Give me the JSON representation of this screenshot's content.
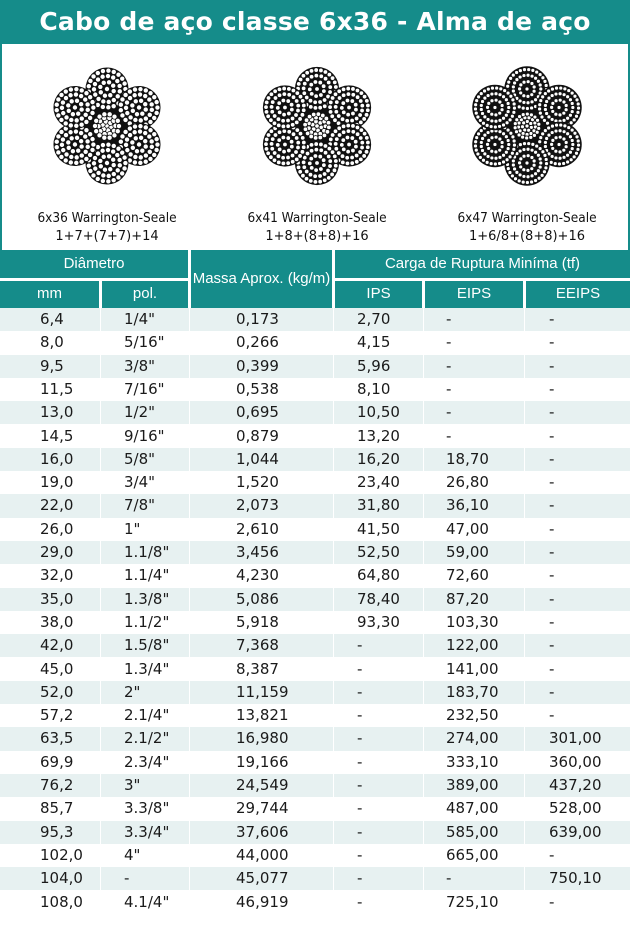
{
  "title": "Cabo de aço classe 6x36 - Alma de aço",
  "figures": [
    {
      "name": "6x36 Warrington-Seale",
      "construction": "1+7+(7+7)+14"
    },
    {
      "name": "6x41 Warrington-Seale",
      "construction": "1+8+(8+8)+16"
    },
    {
      "name": "6x47 Warrington-Seale",
      "construction": "1+6/8+(8+8)+16"
    }
  ],
  "table": {
    "header_diametro": "Diâmetro",
    "header_massa": "Massa Aprox. (kg/m)",
    "header_carga": "Carga de Ruptura Miníma (tf)",
    "col_mm": "mm",
    "col_pol": "pol.",
    "col_ips": "IPS",
    "col_eips": "EIPS",
    "col_eeips": "EEIPS",
    "rows": [
      [
        "6,4",
        "1/4\"",
        "0,173",
        "2,70",
        "-",
        "-"
      ],
      [
        "8,0",
        "5/16\"",
        "0,266",
        "4,15",
        "-",
        "-"
      ],
      [
        "9,5",
        "3/8\"",
        "0,399",
        "5,96",
        "-",
        "-"
      ],
      [
        "11,5",
        "7/16\"",
        "0,538",
        "8,10",
        "-",
        "-"
      ],
      [
        "13,0",
        "1/2\"",
        "0,695",
        "10,50",
        "-",
        "-"
      ],
      [
        "14,5",
        "9/16\"",
        "0,879",
        "13,20",
        "-",
        "-"
      ],
      [
        "16,0",
        "5/8\"",
        "1,044",
        "16,20",
        "18,70",
        "-"
      ],
      [
        "19,0",
        "3/4\"",
        "1,520",
        "23,40",
        "26,80",
        "-"
      ],
      [
        "22,0",
        "7/8\"",
        "2,073",
        "31,80",
        "36,10",
        "-"
      ],
      [
        "26,0",
        "1\"",
        "2,610",
        "41,50",
        "47,00",
        "-"
      ],
      [
        "29,0",
        "1.1/8\"",
        "3,456",
        "52,50",
        "59,00",
        "-"
      ],
      [
        "32,0",
        "1.1/4\"",
        "4,230",
        "64,80",
        "72,60",
        "-"
      ],
      [
        "35,0",
        "1.3/8\"",
        "5,086",
        "78,40",
        "87,20",
        "-"
      ],
      [
        "38,0",
        "1.1/2\"",
        "5,918",
        "93,30",
        "103,30",
        "-"
      ],
      [
        "42,0",
        "1.5/8\"",
        "7,368",
        "-",
        "122,00",
        "-"
      ],
      [
        "45,0",
        "1.3/4\"",
        "8,387",
        "-",
        "141,00",
        "-"
      ],
      [
        "52,0",
        "2\"",
        "11,159",
        "-",
        "183,70",
        "-"
      ],
      [
        "57,2",
        "2.1/4\"",
        "13,821",
        "-",
        "232,50",
        "-"
      ],
      [
        "63,5",
        "2.1/2\"",
        "16,980",
        "-",
        "274,00",
        "301,00"
      ],
      [
        "69,9",
        "2.3/4\"",
        "19,166",
        "-",
        "333,10",
        "360,00"
      ],
      [
        "76,2",
        "3\"",
        "24,549",
        "-",
        "389,00",
        "437,20"
      ],
      [
        "85,7",
        "3.3/8\"",
        "29,744",
        "-",
        "487,00",
        "528,00"
      ],
      [
        "95,3",
        "3.3/4\"",
        "37,606",
        "-",
        "585,00",
        "639,00"
      ],
      [
        "102,0",
        "4\"",
        "44,000",
        "-",
        "665,00",
        "-"
      ],
      [
        "104,0",
        "-",
        "45,077",
        "-",
        "-",
        "750,10"
      ],
      [
        "108,0",
        "4.1/4\"",
        "46,919",
        "-",
        "725,10",
        "-"
      ]
    ]
  },
  "colors": {
    "accent": "#158c8a",
    "row_alt": "#e7f1f1"
  }
}
